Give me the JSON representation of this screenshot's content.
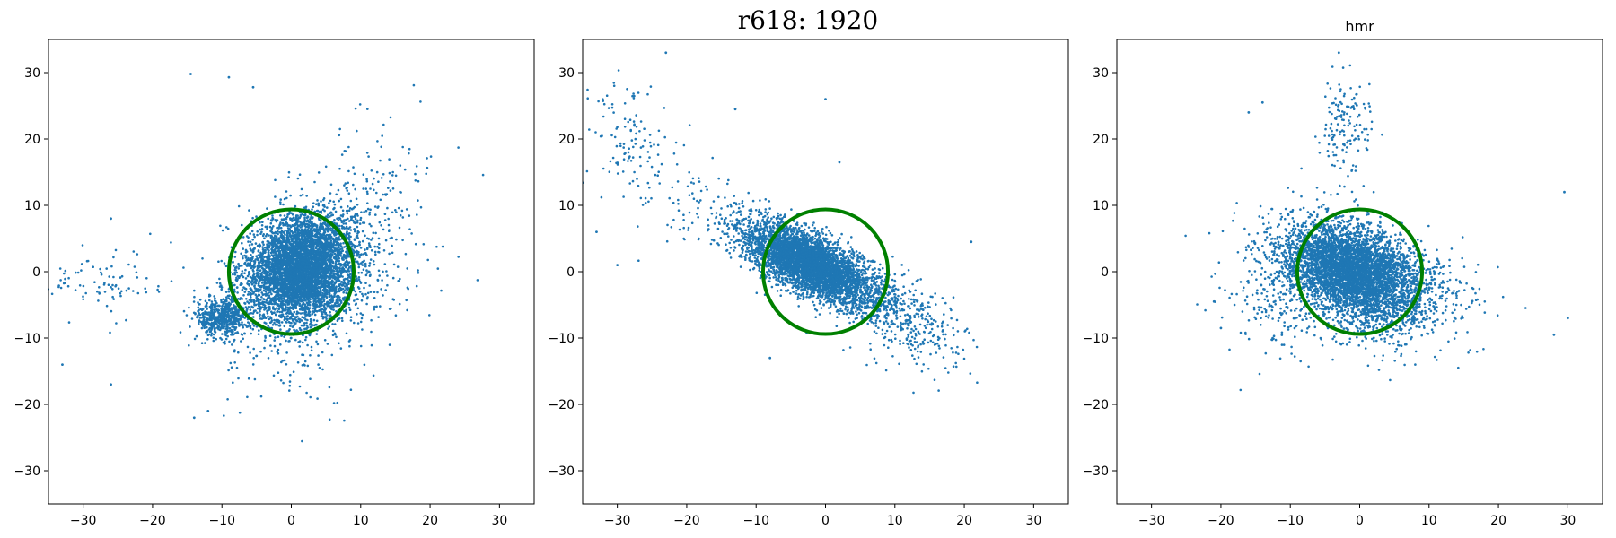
{
  "figure": {
    "suptitle": "r618: 1920"
  },
  "colors": {
    "points": "#1f77b4",
    "circle": "#008000",
    "axes": "#000000"
  },
  "chart_data": [
    {
      "type": "scatter",
      "title": "",
      "xlim": [
        -35,
        35
      ],
      "ylim": [
        -35,
        35
      ],
      "xticks": [
        -30,
        -20,
        -10,
        0,
        10,
        20,
        30
      ],
      "yticks": [
        -30,
        -20,
        -10,
        0,
        10,
        20,
        30
      ],
      "grid": false,
      "circle": {
        "center": [
          0,
          0
        ],
        "radius": 9
      },
      "clusters": [
        {
          "n": 5200,
          "cx": 1.5,
          "cy": 0.5,
          "sx": 4.0,
          "sy": 4.0,
          "rho": 0.15
        },
        {
          "n": 600,
          "cx": -10,
          "cy": -7,
          "sx": 2.0,
          "sy": 1.5,
          "rho": 0.0
        },
        {
          "n": 250,
          "cx": 12,
          "cy": 8,
          "sx": 4.5,
          "sy": 7.0,
          "rho": 0.0
        },
        {
          "n": 90,
          "cx": -27,
          "cy": -2,
          "sx": 5.0,
          "sy": 3.0,
          "rho": 0.0
        },
        {
          "n": 140,
          "cx": 0,
          "cy": -11,
          "sx": 6.0,
          "sy": 5.0,
          "rho": 0.0
        }
      ],
      "outliers": [
        [
          -14.5,
          29.8
        ],
        [
          -9,
          29.3
        ],
        [
          -5.5,
          27.8
        ],
        [
          -26,
          8
        ],
        [
          -33,
          -14
        ],
        [
          -26,
          -17
        ],
        [
          -14,
          -22
        ],
        [
          -12,
          -21
        ]
      ]
    },
    {
      "type": "scatter",
      "title": "",
      "xlim": [
        -35,
        35
      ],
      "ylim": [
        -35,
        35
      ],
      "xticks": [
        -30,
        -20,
        -10,
        0,
        10,
        20,
        30
      ],
      "yticks": [
        -30,
        -20,
        -10,
        0,
        10,
        20,
        30
      ],
      "grid": false,
      "circle": {
        "center": [
          0,
          0
        ],
        "radius": 9
      },
      "clusters": [
        {
          "n": 4800,
          "cx": -2,
          "cy": 1,
          "sx": 5.0,
          "sy": 3.2,
          "rho": -0.72
        },
        {
          "n": 300,
          "cx": 12,
          "cy": -8,
          "sx": 4.0,
          "sy": 3.5,
          "rho": -0.3
        },
        {
          "n": 120,
          "cx": -28,
          "cy": 20,
          "sx": 3.5,
          "sy": 5.0,
          "rho": -0.3
        },
        {
          "n": 60,
          "cx": -18,
          "cy": 10,
          "sx": 4.0,
          "sy": 5.0,
          "rho": 0.0
        }
      ],
      "outliers": [
        [
          -23,
          33
        ],
        [
          0,
          26
        ],
        [
          2,
          16.5
        ],
        [
          -13,
          24.5
        ],
        [
          -30,
          1
        ],
        [
          -33,
          6
        ],
        [
          -8,
          -13
        ],
        [
          21,
          4.5
        ]
      ]
    },
    {
      "type": "scatter",
      "title": "hmr",
      "xlim": [
        -35,
        35
      ],
      "ylim": [
        -35,
        35
      ],
      "xticks": [
        -30,
        -20,
        -10,
        0,
        10,
        20,
        30
      ],
      "yticks": [
        -30,
        -20,
        -10,
        0,
        10,
        20,
        30
      ],
      "grid": false,
      "circle": {
        "center": [
          0,
          0
        ],
        "radius": 9
      },
      "clusters": [
        {
          "n": 5000,
          "cx": -1,
          "cy": 0,
          "sx": 5.0,
          "sy": 3.6,
          "rho": -0.35
        },
        {
          "n": 150,
          "cx": -2,
          "cy": 22,
          "sx": 2.0,
          "sy": 4.5,
          "rho": 0.0
        },
        {
          "n": 300,
          "cx": 6,
          "cy": -5,
          "sx": 6.0,
          "sy": 4.5,
          "rho": 0.0
        },
        {
          "n": 200,
          "cx": -12,
          "cy": -4,
          "sx": 4.0,
          "sy": 5.0,
          "rho": 0.0
        }
      ],
      "outliers": [
        [
          -3,
          33
        ],
        [
          29.5,
          12
        ],
        [
          30,
          -7
        ],
        [
          28,
          -9.5
        ],
        [
          -21,
          -4.5
        ],
        [
          -20,
          -8.5
        ],
        [
          -16,
          24
        ],
        [
          -14,
          25.5
        ]
      ]
    }
  ]
}
